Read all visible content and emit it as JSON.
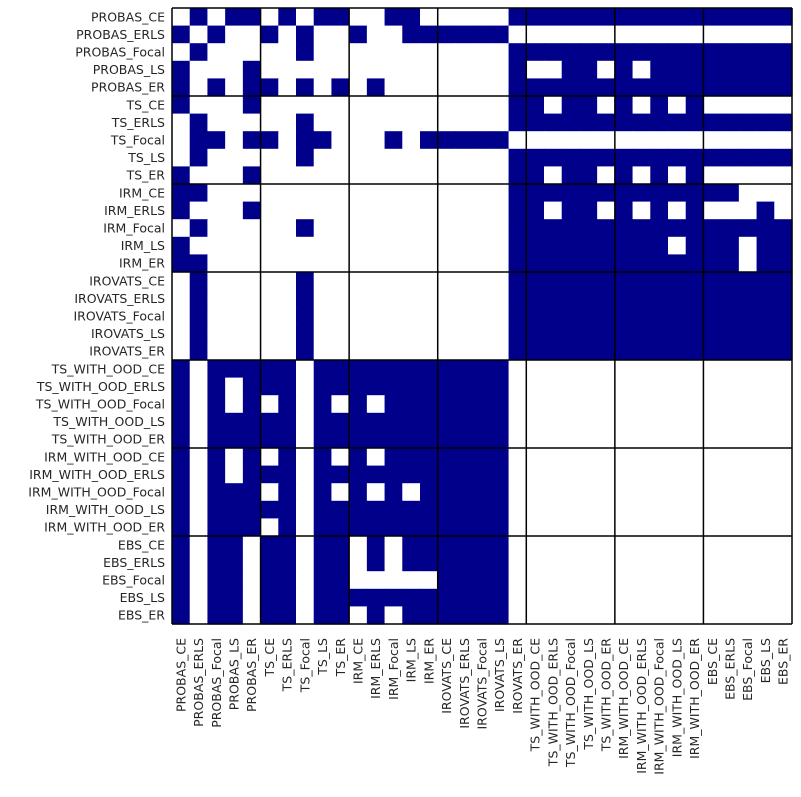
{
  "chart_data": {
    "type": "heatmap",
    "title": "",
    "xlabel": "",
    "ylabel": "",
    "labels": [
      "PROBAS_CE",
      "PROBAS_ERLS",
      "PROBAS_Focal",
      "PROBAS_LS",
      "PROBAS_ER",
      "TS_CE",
      "TS_ERLS",
      "TS_Focal",
      "TS_LS",
      "TS_ER",
      "IRM_CE",
      "IRM_ERLS",
      "IRM_Focal",
      "IRM_LS",
      "IRM_ER",
      "IROVATS_CE",
      "IROVATS_ERLS",
      "IROVATS_Focal",
      "IROVATS_LS",
      "IROVATS_ER",
      "TS_WITH_OOD_CE",
      "TS_WITH_OOD_ERLS",
      "TS_WITH_OOD_Focal",
      "TS_WITH_OOD_LS",
      "TS_WITH_OOD_ER",
      "IRM_WITH_OOD_CE",
      "IRM_WITH_OOD_ERLS",
      "IRM_WITH_OOD_Focal",
      "IRM_WITH_OOD_LS",
      "IRM_WITH_OOD_ER",
      "EBS_CE",
      "EBS_ERLS",
      "EBS_Focal",
      "EBS_LS",
      "EBS_ER"
    ],
    "group_size": 5,
    "colors": {
      "true": "#00008b",
      "false": "#ffffff",
      "separator": "#000000"
    },
    "matrix": [
      "01011010110011000001111111111111111",
      "10100101001001111110000000000000000",
      "01000001000000000001111111111111111",
      "10001000000000000001001101011111111",
      "10101101010100000001111111111111111",
      "10001000000000000001101101010100000",
      "01000001000000000001111111111111111",
      "01101101100010111110000000000000000",
      "01000001000000000001111111111111111",
      "10001000000000000001101101010100000",
      "11000000000000000001111111111111000",
      "10001000000000000001101101010100010",
      "01000001000000000001111111111111111",
      "10000000000000000001111111110111011",
      "11000000000000000001111111111111011",
      "01000001000000000001111111111111111",
      "01000001000000000001111111111111111",
      "01000001000000000001111111111111111",
      "01000001000000000001111111111111111",
      "01000001000000000001111111111111111",
      "10111110111111111110000000000000000",
      "10101110111111111110000000000000000",
      "10101010101011111110000000000000000",
      "10111110111111111110000000000000000",
      "10111110111111111110000000000000000",
      "10101010101011111110000000000000000",
      "10101110111111111110000000000000000",
      "10111010101010111110000000000000000",
      "10111110111111111110000000000000000",
      "10111010111111111110000000000000000",
      "10110110110101111110000000000000000",
      "10110110110101111110000000000000000",
      "10110110110000011110000000000000000",
      "10110110111111111110000000000000000",
      "10110110110101111110000000000000000"
    ]
  }
}
